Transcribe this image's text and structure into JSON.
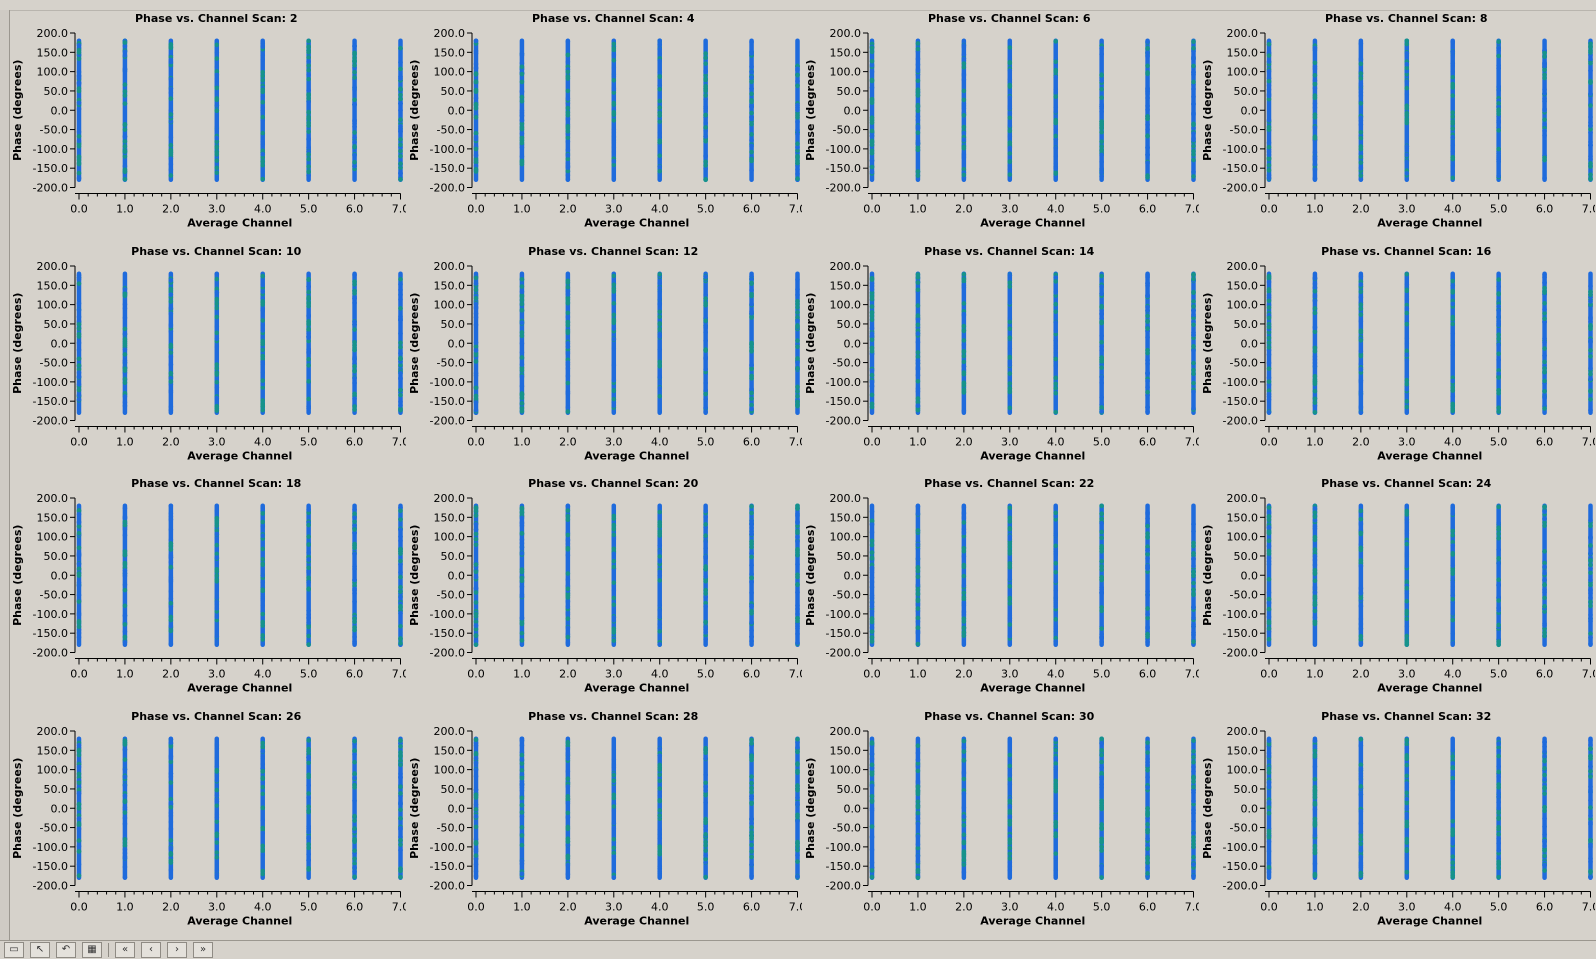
{
  "layout": {
    "rows": 4,
    "cols": 4
  },
  "colors": {
    "panel_bg": "#d6d2cb",
    "series_1": "#1f6bdc",
    "series_2": "#16938b",
    "axis": "#000000"
  },
  "toolbar": {
    "buttons": [
      {
        "icon": "window-icon",
        "glyph": "▭"
      },
      {
        "icon": "pointer-icon",
        "glyph": "↖"
      },
      {
        "icon": "undo-icon",
        "glyph": "↶"
      },
      {
        "icon": "table-icon",
        "glyph": "▦"
      },
      {
        "icon": "rewind-icon",
        "glyph": "«"
      },
      {
        "icon": "back-icon",
        "glyph": "‹"
      },
      {
        "icon": "forward-icon",
        "glyph": "›"
      },
      {
        "icon": "fast-forward-icon",
        "glyph": "»"
      }
    ]
  },
  "chart_data": [
    {
      "type": "scatter",
      "title": "Phase vs. Channel Scan: 2",
      "xlabel": "Average Channel",
      "ylabel": "Phase (degrees)",
      "xlim": [
        0,
        7
      ],
      "ylim": [
        -200,
        200
      ],
      "x": [
        0,
        1,
        2,
        3,
        4,
        5,
        6,
        7
      ],
      "yrange": [
        -180,
        180
      ],
      "grid": false
    },
    {
      "type": "scatter",
      "title": "Phase vs. Channel Scan: 4",
      "xlabel": "Average Channel",
      "ylabel": "Phase (degrees)",
      "xlim": [
        0,
        7
      ],
      "ylim": [
        -200,
        200
      ],
      "x": [
        0,
        1,
        2,
        3,
        4,
        5,
        6,
        7
      ],
      "yrange": [
        -180,
        180
      ],
      "grid": false
    },
    {
      "type": "scatter",
      "title": "Phase vs. Channel Scan: 6",
      "xlabel": "Average Channel",
      "ylabel": "Phase (degrees)",
      "xlim": [
        0,
        7
      ],
      "ylim": [
        -200,
        200
      ],
      "x": [
        0,
        1,
        2,
        3,
        4,
        5,
        6,
        7
      ],
      "yrange": [
        -180,
        180
      ],
      "grid": false
    },
    {
      "type": "scatter",
      "title": "Phase vs. Channel Scan: 8",
      "xlabel": "Average Channel",
      "ylabel": "Phase (degrees)",
      "xlim": [
        0,
        7
      ],
      "ylim": [
        -200,
        200
      ],
      "x": [
        0,
        1,
        2,
        3,
        4,
        5,
        6,
        7
      ],
      "yrange": [
        -180,
        180
      ],
      "grid": false
    },
    {
      "type": "scatter",
      "title": "Phase vs. Channel Scan: 10",
      "xlabel": "Average Channel",
      "ylabel": "Phase (degrees)",
      "xlim": [
        0,
        7
      ],
      "ylim": [
        -200,
        200
      ],
      "x": [
        0,
        1,
        2,
        3,
        4,
        5,
        6,
        7
      ],
      "yrange": [
        -180,
        180
      ],
      "grid": false
    },
    {
      "type": "scatter",
      "title": "Phase vs. Channel Scan: 12",
      "xlabel": "Average Channel",
      "ylabel": "Phase (degrees)",
      "xlim": [
        0,
        7
      ],
      "ylim": [
        -200,
        200
      ],
      "x": [
        0,
        1,
        2,
        3,
        4,
        5,
        6,
        7
      ],
      "yrange": [
        -180,
        180
      ],
      "grid": false
    },
    {
      "type": "scatter",
      "title": "Phase vs. Channel Scan: 14",
      "xlabel": "Average Channel",
      "ylabel": "Phase (degrees)",
      "xlim": [
        0,
        7
      ],
      "ylim": [
        -200,
        200
      ],
      "x": [
        0,
        1,
        2,
        3,
        4,
        5,
        6,
        7
      ],
      "yrange": [
        -180,
        180
      ],
      "grid": false
    },
    {
      "type": "scatter",
      "title": "Phase vs. Channel Scan: 16",
      "xlabel": "Average Channel",
      "ylabel": "Phase (degrees)",
      "xlim": [
        0,
        7
      ],
      "ylim": [
        -200,
        200
      ],
      "x": [
        0,
        1,
        2,
        3,
        4,
        5,
        6,
        7
      ],
      "yrange": [
        -180,
        180
      ],
      "grid": false
    },
    {
      "type": "scatter",
      "title": "Phase vs. Channel Scan: 18",
      "xlabel": "Average Channel",
      "ylabel": "Phase (degrees)",
      "xlim": [
        0,
        7
      ],
      "ylim": [
        -200,
        200
      ],
      "x": [
        0,
        1,
        2,
        3,
        4,
        5,
        6,
        7
      ],
      "yrange": [
        -180,
        180
      ],
      "grid": false
    },
    {
      "type": "scatter",
      "title": "Phase vs. Channel Scan: 20",
      "xlabel": "Average Channel",
      "ylabel": "Phase (degrees)",
      "xlim": [
        0,
        7
      ],
      "ylim": [
        -200,
        200
      ],
      "x": [
        0,
        1,
        2,
        3,
        4,
        5,
        6,
        7
      ],
      "yrange": [
        -180,
        180
      ],
      "grid": false
    },
    {
      "type": "scatter",
      "title": "Phase vs. Channel Scan: 22",
      "xlabel": "Average Channel",
      "ylabel": "Phase (degrees)",
      "xlim": [
        0,
        7
      ],
      "ylim": [
        -200,
        200
      ],
      "x": [
        0,
        1,
        2,
        3,
        4,
        5,
        6,
        7
      ],
      "yrange": [
        -180,
        180
      ],
      "grid": false
    },
    {
      "type": "scatter",
      "title": "Phase vs. Channel Scan: 24",
      "xlabel": "Average Channel",
      "ylabel": "Phase (degrees)",
      "xlim": [
        0,
        7
      ],
      "ylim": [
        -200,
        200
      ],
      "x": [
        0,
        1,
        2,
        3,
        4,
        5,
        6,
        7
      ],
      "yrange": [
        -180,
        180
      ],
      "grid": false
    },
    {
      "type": "scatter",
      "title": "Phase vs. Channel Scan: 26",
      "xlabel": "Average Channel",
      "ylabel": "Phase (degrees)",
      "xlim": [
        0,
        7
      ],
      "ylim": [
        -200,
        200
      ],
      "x": [
        0,
        1,
        2,
        3,
        4,
        5,
        6,
        7
      ],
      "yrange": [
        -180,
        180
      ],
      "grid": false
    },
    {
      "type": "scatter",
      "title": "Phase vs. Channel Scan: 28",
      "xlabel": "Average Channel",
      "ylabel": "Phase (degrees)",
      "xlim": [
        0,
        7
      ],
      "ylim": [
        -200,
        200
      ],
      "x": [
        0,
        1,
        2,
        3,
        4,
        5,
        6,
        7
      ],
      "yrange": [
        -180,
        180
      ],
      "grid": false
    },
    {
      "type": "scatter",
      "title": "Phase vs. Channel Scan: 30",
      "xlabel": "Average Channel",
      "ylabel": "Phase (degrees)",
      "xlim": [
        0,
        7
      ],
      "ylim": [
        -200,
        200
      ],
      "x": [
        0,
        1,
        2,
        3,
        4,
        5,
        6,
        7
      ],
      "yrange": [
        -180,
        180
      ],
      "grid": false
    },
    {
      "type": "scatter",
      "title": "Phase vs. Channel Scan: 32",
      "xlabel": "Average Channel",
      "ylabel": "Phase (degrees)",
      "xlim": [
        0,
        7
      ],
      "ylim": [
        -200,
        200
      ],
      "x": [
        0,
        1,
        2,
        3,
        4,
        5,
        6,
        7
      ],
      "yrange": [
        -180,
        180
      ],
      "grid": false
    }
  ]
}
